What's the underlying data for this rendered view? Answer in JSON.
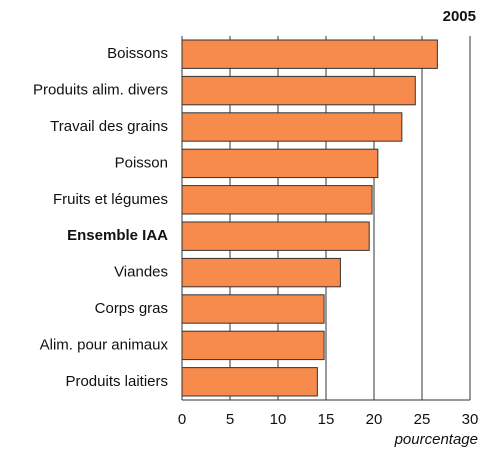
{
  "chart_data": {
    "type": "hbar",
    "title": "2005",
    "x_label": "pourcentage",
    "categories": [
      "Boissons",
      "Produits alim. divers",
      "Travail des grains",
      "Poisson",
      "Fruits et légumes",
      "Ensemble IAA",
      "Viandes",
      "Corps gras",
      "Alim. pour animaux",
      "Produits laitiers"
    ],
    "values": [
      26.6,
      24.3,
      22.9,
      20.4,
      19.8,
      19.5,
      16.5,
      14.8,
      14.8,
      14.1
    ],
    "color": "#f68b4c",
    "bold_categories": [
      5
    ],
    "xlim": [
      0,
      30
    ],
    "xticks": [
      0,
      5,
      10,
      15,
      20,
      25,
      30
    ],
    "grid": true
  }
}
